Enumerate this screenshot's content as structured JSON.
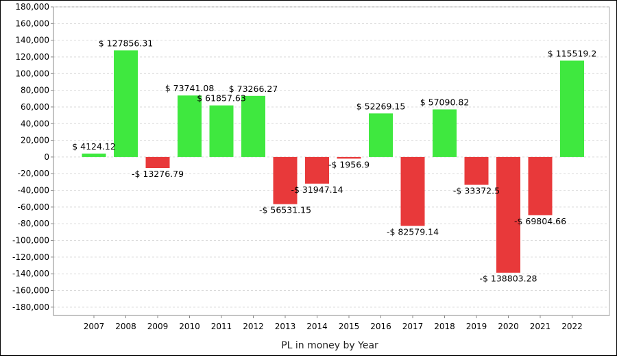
{
  "chart_data": {
    "type": "bar",
    "title": "",
    "xlabel": "PL in money by Year",
    "ylabel": "",
    "ylim": [
      -190000,
      180000
    ],
    "ytick_step": 20000,
    "grid": true,
    "categories": [
      "2007",
      "2008",
      "2009",
      "2010",
      "2011",
      "2012",
      "2013",
      "2014",
      "2015",
      "2016",
      "2017",
      "2018",
      "2019",
      "2020",
      "2021",
      "2022"
    ],
    "values": [
      4124.12,
      127856.31,
      -13276.79,
      73741.08,
      61857.63,
      73266.27,
      -56531.15,
      -31947.14,
      -1956.9,
      52269.15,
      -82579.14,
      57090.82,
      -33372.5,
      -138803.28,
      -69804.66,
      115519.2
    ],
    "labels": [
      "$ 4124.12",
      "$ 127856.31",
      "-$ 13276.79",
      "$ 73741.08",
      "$ 61857.63",
      "$ 73266.27",
      "-$ 56531.15",
      "-$ 31947.14",
      "-$ 1956.9",
      "$ 52269.15",
      "-$ 82579.14",
      "$ 57090.82",
      "-$ 33372.5",
      "-$ 138803.28",
      "-$ 69804.66",
      "$ 115519.2"
    ],
    "yticks": [
      "180,000",
      "160,000",
      "140,000",
      "120,000",
      "100,000",
      "80,000",
      "60,000",
      "40,000",
      "20,000",
      "0",
      "-20,000",
      "-40,000",
      "-60,000",
      "-80,000",
      "-100,000",
      "-120,000",
      "-140,000",
      "-160,000",
      "-180,000"
    ],
    "colors": {
      "positive": "#3fe83f",
      "negative": "#e8393a",
      "grid": "#d9d9d9",
      "axis": "#888888",
      "plot_border": "#aaaaaa"
    }
  }
}
